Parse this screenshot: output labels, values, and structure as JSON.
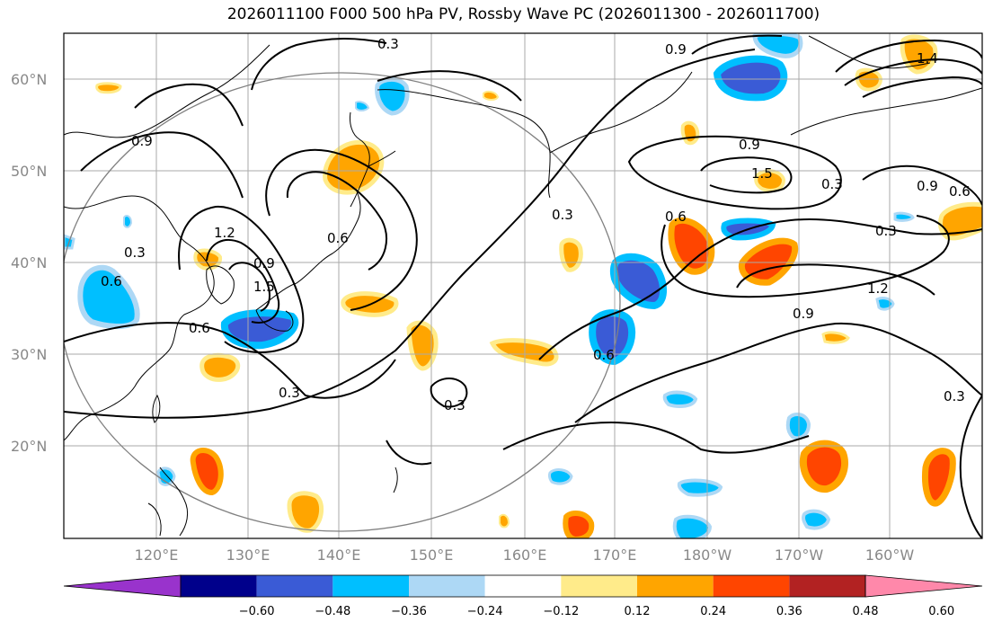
{
  "title": "2026011100 F000 500 hPa PV, Rossby Wave PC (2026011300 - 2026011700)",
  "lat_labels": [
    "60°N",
    "50°N",
    "40°N",
    "30°N",
    "20°N"
  ],
  "lon_labels": [
    "120°E",
    "130°E",
    "140°E",
    "150°E",
    "160°E",
    "170°E",
    "180°W",
    "170°W",
    "160°W"
  ],
  "colorbar": {
    "colors": [
      "#9933cc",
      "#00008b",
      "#3a5bd6",
      "#00bfff",
      "#add8f5",
      "#ffffff",
      "#ffeb8a",
      "#ffa500",
      "#ff4500",
      "#b22222",
      "#ff88aa"
    ],
    "tick_labels": [
      "−0.60",
      "−0.48",
      "−0.36",
      "−0.24",
      "−0.12",
      "0.12",
      "0.24",
      "0.36",
      "0.48",
      "0.60"
    ]
  },
  "contour_labels": [
    "0.3",
    "0.9",
    "0.9",
    "0.6",
    "1.2",
    "0.9",
    "1.5",
    "0.3",
    "0.6",
    "0.3",
    "0.3",
    "0.9",
    "1.5",
    "0.3",
    "0.6",
    "0.9",
    "0.6",
    "0.6",
    "1.2",
    "0.9",
    "0.6",
    "0.3",
    "0.3",
    "0.3",
    "1.4"
  ],
  "colors": {
    "coast": "#000000",
    "grid": "#aaaaaa",
    "contour": "#000000",
    "circle": "#808080"
  }
}
